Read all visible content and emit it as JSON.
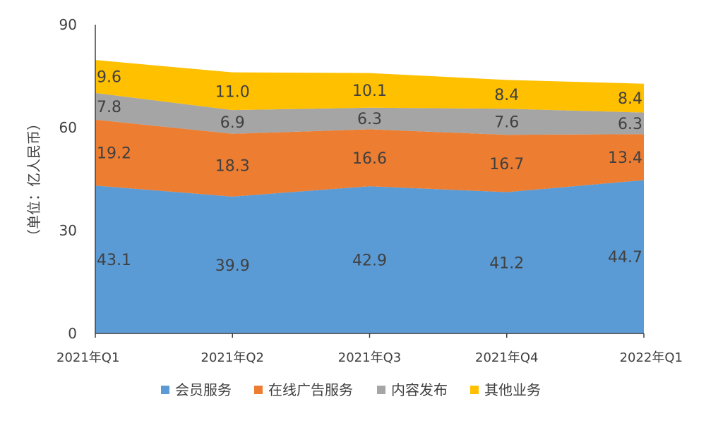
{
  "chart_data": {
    "type": "area",
    "stacked": true,
    "categories": [
      "2021年Q1",
      "2021年Q2",
      "2021年Q3",
      "2021年Q4",
      "2022年Q1"
    ],
    "ylabel": "（单位：亿人民币）",
    "ylim": [
      0,
      90
    ],
    "yticks": [
      0,
      30,
      60,
      90
    ],
    "grid": false,
    "legend_position": "bottom",
    "series": [
      {
        "name": "会员服务",
        "values": [
          43.1,
          39.9,
          42.9,
          41.2,
          44.7
        ],
        "labels": [
          "43.1",
          "39.9",
          "42.9",
          "41.2",
          "44.7"
        ],
        "color": "#5B9BD5"
      },
      {
        "name": "在线广告服务",
        "values": [
          19.2,
          18.3,
          16.6,
          16.7,
          13.4
        ],
        "labels": [
          "19.2",
          "18.3",
          "16.6",
          "16.7",
          "13.4"
        ],
        "color": "#ED7D31"
      },
      {
        "name": "内容发布",
        "values": [
          7.8,
          6.9,
          6.3,
          7.6,
          6.3
        ],
        "labels": [
          "7.8",
          "6.9",
          "6.3",
          "7.6",
          "6.3"
        ],
        "color": "#A5A5A5"
      },
      {
        "name": "其他业务",
        "values": [
          9.6,
          11.0,
          10.1,
          8.4,
          8.4
        ],
        "labels": [
          "9.6",
          "11.0",
          "10.1",
          "8.4",
          "8.4"
        ],
        "color": "#FFC000"
      }
    ]
  }
}
